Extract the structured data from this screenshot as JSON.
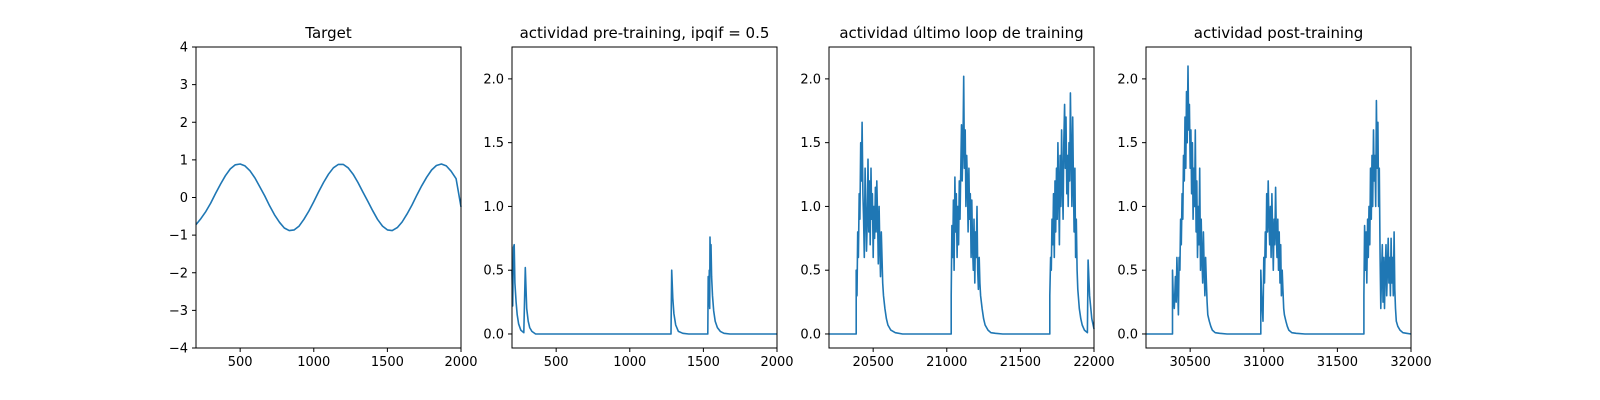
{
  "chart_data": [
    {
      "type": "line",
      "title": "Target",
      "xlim": [
        200,
        2000
      ],
      "ylim": [
        -4,
        4
      ],
      "xticks": [
        500,
        1000,
        1500,
        2000
      ],
      "yticks": [
        -4,
        -3,
        -2,
        -1,
        0,
        1,
        2,
        3,
        4
      ],
      "series": [
        {
          "color": "#1f77b4",
          "x": [
            200,
            233,
            267,
            300,
            333,
            367,
            400,
            433,
            467,
            500,
            533,
            567,
            600,
            633,
            667,
            700,
            733,
            767,
            800,
            833,
            867,
            900,
            933,
            967,
            1000,
            1033,
            1067,
            1100,
            1133,
            1167,
            1200,
            1233,
            1267,
            1300,
            1333,
            1367,
            1400,
            1433,
            1467,
            1500,
            1533,
            1567,
            1600,
            1633,
            1667,
            1700,
            1733,
            1767,
            1800,
            1833,
            1867,
            1900,
            1933,
            1967,
            2000
          ],
          "y": [
            -0.72,
            -0.56,
            -0.37,
            -0.15,
            0.11,
            0.36,
            0.58,
            0.76,
            0.87,
            0.89,
            0.84,
            0.71,
            0.52,
            0.29,
            0.04,
            -0.22,
            -0.46,
            -0.66,
            -0.81,
            -0.88,
            -0.86,
            -0.76,
            -0.58,
            -0.36,
            -0.11,
            0.15,
            0.4,
            0.62,
            0.79,
            0.88,
            0.88,
            0.79,
            0.62,
            0.4,
            0.15,
            -0.1,
            -0.35,
            -0.58,
            -0.76,
            -0.86,
            -0.88,
            -0.8,
            -0.65,
            -0.44,
            -0.2,
            0.06,
            0.31,
            0.54,
            0.73,
            0.85,
            0.89,
            0.84,
            0.7,
            0.5,
            -0.25
          ]
        }
      ]
    },
    {
      "type": "line",
      "title": "actividad pre-training, ipqif = 0.5",
      "xlim": [
        200,
        2000
      ],
      "ylim": [
        -0.11,
        2.25
      ],
      "xticks": [
        500,
        1000,
        1500,
        2000
      ],
      "yticks": [
        0.0,
        0.5,
        1.0,
        1.5,
        2.0
      ],
      "series": [
        {
          "color": "#1f77b4",
          "x": [
            200,
            205,
            210,
            215,
            220,
            228,
            235,
            245,
            260,
            280,
            290,
            300,
            310,
            320,
            335,
            360,
            400,
            1280,
            1285,
            1292,
            1300,
            1312,
            1330,
            1360,
            1400,
            1530,
            1533,
            1536,
            1540,
            1543,
            1545,
            1548,
            1552,
            1556,
            1562,
            1570,
            1580,
            1595,
            1615,
            1640,
            1680,
            2000
          ],
          "y": [
            0.5,
            0.22,
            0.68,
            0.7,
            0.4,
            0.25,
            0.15,
            0.08,
            0.03,
            0.01,
            0.52,
            0.2,
            0.1,
            0.05,
            0.02,
            0.0,
            0.0,
            0.0,
            0.5,
            0.28,
            0.16,
            0.07,
            0.02,
            0.005,
            0.0,
            0.0,
            0.45,
            0.22,
            0.5,
            0.2,
            0.76,
            0.55,
            0.7,
            0.45,
            0.3,
            0.18,
            0.1,
            0.05,
            0.02,
            0.005,
            0.0,
            0.0
          ]
        }
      ]
    },
    {
      "type": "line",
      "title": "actividad último loop de training",
      "xlim": [
        20200,
        22000
      ],
      "ylim": [
        -0.11,
        2.25
      ],
      "xticks": [
        20500,
        21000,
        21500,
        22000
      ],
      "yticks": [
        0.0,
        0.5,
        1.0,
        1.5,
        2.0
      ],
      "series": [
        {
          "color": "#1f77b4",
          "x": [
            20200,
            20385,
            20385,
            20390,
            20395,
            20400,
            20405,
            20410,
            20415,
            20420,
            20425,
            20430,
            20435,
            20440,
            20445,
            20450,
            20455,
            20460,
            20465,
            20470,
            20475,
            20480,
            20485,
            20490,
            20495,
            20500,
            20505,
            20510,
            20515,
            20520,
            20525,
            20530,
            20535,
            20540,
            20545,
            20550,
            20555,
            20560,
            20565,
            20570,
            20580,
            20590,
            20600,
            20620,
            20650,
            20700,
            21030,
            21030,
            21035,
            21040,
            21045,
            21050,
            21055,
            21060,
            21065,
            21070,
            21075,
            21080,
            21085,
            21090,
            21095,
            21100,
            21105,
            21110,
            21115,
            21120,
            21125,
            21130,
            21135,
            21140,
            21145,
            21150,
            21155,
            21160,
            21165,
            21170,
            21175,
            21180,
            21185,
            21190,
            21195,
            21200,
            21205,
            21210,
            21215,
            21220,
            21225,
            21230,
            21240,
            21250,
            21260,
            21280,
            21300,
            21330,
            21380,
            21700,
            21700,
            21705,
            21710,
            21715,
            21720,
            21725,
            21730,
            21735,
            21740,
            21745,
            21750,
            21755,
            21760,
            21765,
            21770,
            21775,
            21780,
            21785,
            21790,
            21795,
            21800,
            21805,
            21810,
            21815,
            21820,
            21825,
            21830,
            21835,
            21840,
            21845,
            21850,
            21855,
            21860,
            21865,
            21870,
            21875,
            21880,
            21885,
            21890,
            21900,
            21910,
            21920,
            21935,
            21955,
            21960,
            21970,
            21985,
            22000
          ],
          "y": [
            0.0,
            0.0,
            0.5,
            0.3,
            0.8,
            0.6,
            1.1,
            0.9,
            1.5,
            1.2,
            1.66,
            1.1,
            0.9,
            0.6,
            1.3,
            1.0,
            0.65,
            0.9,
            1.37,
            0.8,
            1.2,
            0.7,
            1.3,
            0.9,
            1.1,
            0.6,
            1.0,
            0.75,
            1.15,
            0.8,
            1.2,
            0.9,
            0.55,
            1.0,
            0.7,
            0.45,
            0.8,
            0.6,
            0.4,
            0.3,
            0.2,
            0.12,
            0.07,
            0.03,
            0.01,
            0.0,
            0.0,
            0.3,
            0.85,
            0.6,
            1.05,
            0.5,
            1.23,
            0.8,
            1.1,
            0.6,
            1.0,
            0.7,
            1.2,
            0.9,
            1.3,
            1.64,
            1.2,
            1.5,
            2.02,
            1.3,
            1.6,
            1.0,
            1.4,
            1.2,
            0.8,
            1.3,
            0.9,
            1.1,
            0.6,
            1.05,
            0.7,
            0.5,
            0.9,
            0.4,
            0.8,
            0.6,
            1.0,
            0.5,
            0.35,
            0.6,
            0.4,
            0.3,
            0.2,
            0.12,
            0.07,
            0.03,
            0.01,
            0.005,
            0.0,
            0.0,
            0.3,
            0.6,
            0.5,
            0.9,
            0.7,
            1.1,
            0.6,
            1.2,
            0.8,
            1.3,
            0.9,
            1.5,
            1.1,
            0.7,
            1.4,
            1.0,
            1.6,
            1.2,
            0.9,
            1.5,
            1.8,
            1.3,
            1.7,
            1.1,
            1.4,
            1.0,
            1.5,
            1.2,
            1.89,
            1.4,
            1.0,
            1.7,
            1.2,
            0.8,
            1.3,
            0.6,
            0.9,
            0.5,
            0.35,
            0.2,
            0.12,
            0.07,
            0.03,
            0.01,
            0.58,
            0.3,
            0.12,
            0.04
          ]
        }
      ]
    },
    {
      "type": "line",
      "title": "actividad post-training",
      "xlim": [
        30200,
        32000
      ],
      "ylim": [
        -0.11,
        2.25
      ],
      "xticks": [
        30500,
        31000,
        31500,
        32000
      ],
      "yticks": [
        0.0,
        0.5,
        1.0,
        1.5,
        2.0
      ],
      "series": [
        {
          "color": "#1f77b4",
          "x": [
            30200,
            30380,
            30380,
            30385,
            30392,
            30400,
            30405,
            30410,
            30420,
            30425,
            30430,
            30435,
            30440,
            30445,
            30450,
            30455,
            30460,
            30465,
            30470,
            30475,
            30480,
            30485,
            30490,
            30495,
            30500,
            30505,
            30510,
            30515,
            30520,
            30525,
            30530,
            30535,
            30540,
            30545,
            30550,
            30555,
            30560,
            30565,
            30570,
            30575,
            30580,
            30585,
            30590,
            30595,
            30600,
            30605,
            30610,
            30615,
            30620,
            30630,
            30640,
            30650,
            30670,
            30700,
            30750,
            30980,
            30980,
            30985,
            30990,
            30995,
            31000,
            31005,
            31010,
            31015,
            31020,
            31025,
            31030,
            31035,
            31040,
            31045,
            31050,
            31055,
            31060,
            31065,
            31070,
            31075,
            31080,
            31085,
            31090,
            31095,
            31100,
            31105,
            31110,
            31115,
            31120,
            31125,
            31130,
            31135,
            31140,
            31150,
            31160,
            31170,
            31190,
            31220,
            31280,
            31680,
            31680,
            31685,
            31690,
            31695,
            31700,
            31705,
            31710,
            31715,
            31720,
            31725,
            31730,
            31735,
            31740,
            31745,
            31750,
            31755,
            31760,
            31765,
            31770,
            31775,
            31780,
            31785,
            31790,
            31795,
            31800,
            31805,
            31810,
            31815,
            31820,
            31825,
            31830,
            31835,
            31840,
            31845,
            31850,
            31855,
            31860,
            31865,
            31870,
            31875,
            31880,
            31885,
            31890,
            31895,
            31900,
            31910,
            31925,
            31945,
            31970,
            32000
          ],
          "y": [
            0.0,
            0.0,
            0.5,
            0.3,
            0.2,
            0.45,
            0.25,
            0.6,
            0.15,
            0.6,
            0.5,
            0.9,
            0.7,
            1.1,
            0.9,
            1.4,
            1.2,
            1.7,
            1.3,
            1.9,
            1.5,
            2.1,
            1.6,
            1.8,
            1.3,
            1.6,
            1.1,
            1.5,
            0.9,
            1.3,
            1.0,
            1.6,
            0.8,
            1.2,
            0.6,
            1.0,
            0.7,
            1.3,
            0.5,
            0.9,
            0.6,
            0.4,
            0.8,
            0.5,
            0.3,
            0.6,
            0.4,
            0.25,
            0.15,
            0.1,
            0.06,
            0.03,
            0.01,
            0.005,
            0.0,
            0.0,
            0.5,
            0.3,
            0.2,
            0.1,
            0.6,
            0.4,
            0.8,
            0.6,
            1.1,
            0.8,
            1.2,
            0.9,
            0.7,
            1.0,
            0.6,
            1.1,
            0.8,
            0.5,
            0.9,
            0.7,
            1.15,
            0.8,
            0.6,
            0.9,
            0.5,
            0.8,
            0.4,
            0.7,
            0.3,
            0.5,
            0.35,
            0.2,
            0.15,
            0.1,
            0.06,
            0.03,
            0.01,
            0.005,
            0.0,
            0.0,
            0.3,
            0.85,
            0.5,
            0.8,
            0.4,
            0.9,
            0.6,
            1.0,
            0.7,
            1.3,
            0.9,
            1.4,
            1.0,
            1.6,
            1.2,
            1.4,
            1.0,
            1.83,
            1.3,
            1.66,
            1.0,
            1.3,
            0.6,
            0.2,
            0.5,
            0.7,
            0.25,
            0.6,
            0.2,
            0.5,
            0.7,
            0.3,
            0.5,
            0.75,
            0.4,
            0.6,
            0.3,
            0.75,
            0.4,
            0.6,
            0.3,
            0.8,
            0.35,
            0.2,
            0.1,
            0.06,
            0.03,
            0.01,
            0.005,
            0.0
          ]
        }
      ]
    }
  ]
}
